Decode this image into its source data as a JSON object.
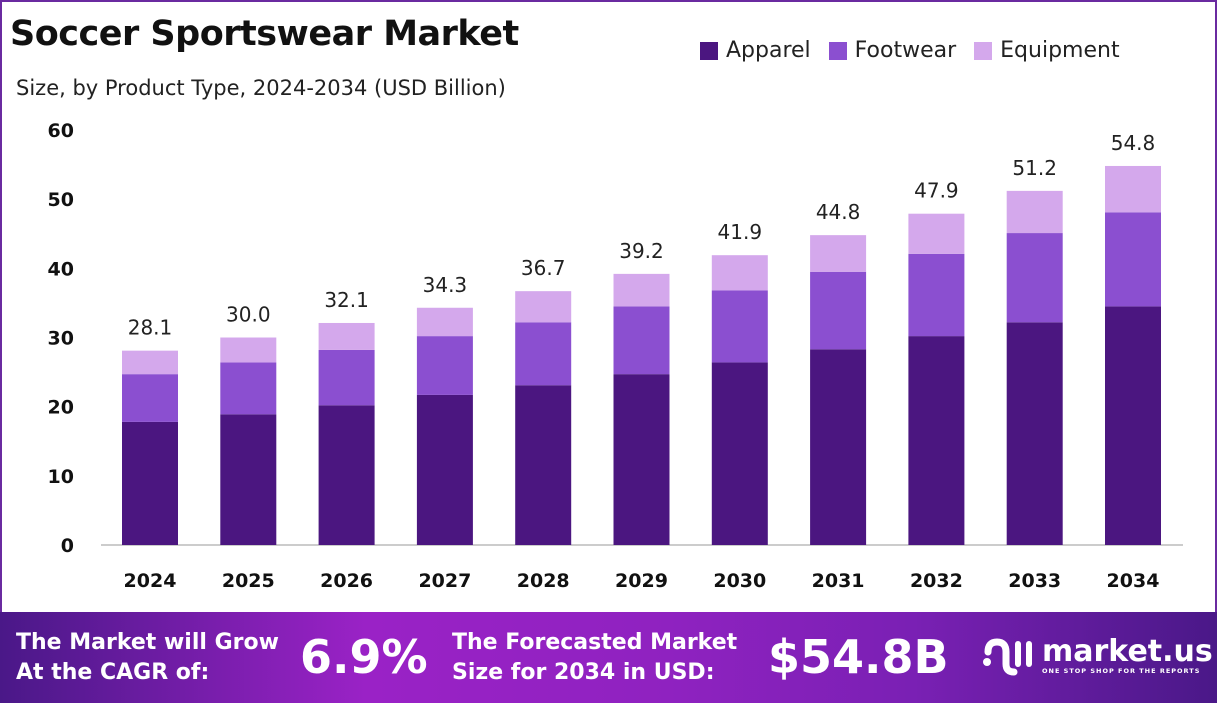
{
  "chart_data": {
    "type": "bar",
    "stacked": true,
    "title": "Soccer Sportswear Market",
    "subtitle": "Size, by Product Type, 2024-2034 (USD Billion)",
    "categories": [
      "2024",
      "2025",
      "2026",
      "2027",
      "2028",
      "2029",
      "2030",
      "2031",
      "2032",
      "2033",
      "2034"
    ],
    "series": [
      {
        "name": "Apparel",
        "color": "#4b1680",
        "values": [
          17.8,
          18.9,
          20.2,
          21.7,
          23.1,
          24.7,
          26.4,
          28.3,
          30.2,
          32.2,
          34.5
        ]
      },
      {
        "name": "Footwear",
        "color": "#8b4fd0",
        "values": [
          6.9,
          7.5,
          8.0,
          8.5,
          9.1,
          9.8,
          10.4,
          11.2,
          11.9,
          12.9,
          13.6
        ]
      },
      {
        "name": "Equipment",
        "color": "#d4a8ec",
        "values": [
          3.4,
          3.6,
          3.9,
          4.1,
          4.5,
          4.7,
          5.1,
          5.3,
          5.8,
          6.1,
          6.7
        ]
      }
    ],
    "totals": [
      "28.1",
      "30.0",
      "32.1",
      "34.3",
      "36.7",
      "39.2",
      "41.9",
      "44.8",
      "47.9",
      "51.2",
      "54.8"
    ],
    "ylim": [
      0,
      60
    ],
    "yticks": [
      "0",
      "10",
      "20",
      "30",
      "40",
      "50",
      "60"
    ],
    "grid": false,
    "legend": "top-right"
  },
  "footer": {
    "cagr_label_1": "The Market will Grow",
    "cagr_label_2": "At the CAGR of:",
    "cagr_value": "6.9%",
    "forecast_label_1": "The Forecasted Market",
    "forecast_label_2": "Size for 2034 in USD:",
    "forecast_value": "$54.8B",
    "logo_name": "market.us",
    "logo_tagline": "ONE STOP SHOP FOR THE REPORTS"
  }
}
